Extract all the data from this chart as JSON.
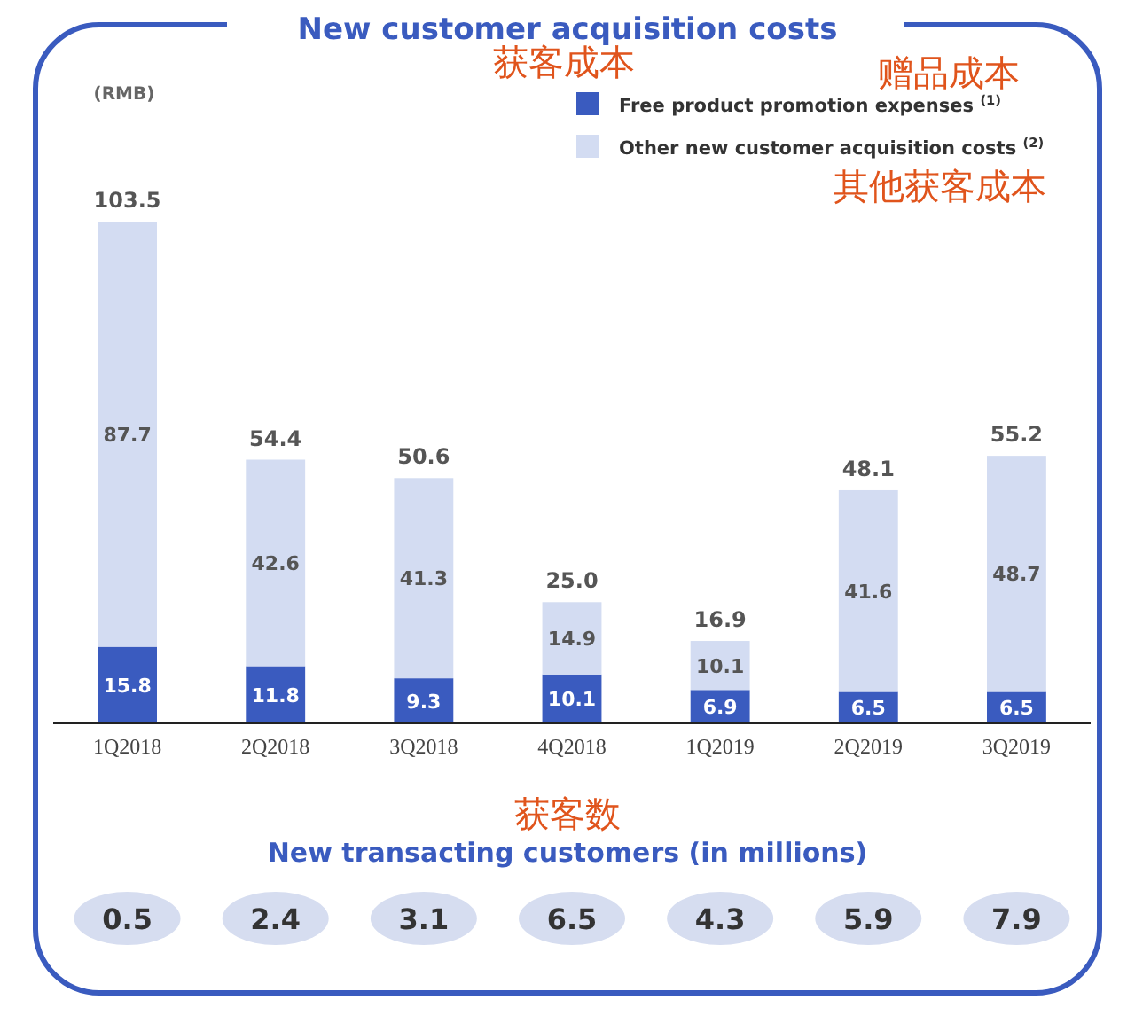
{
  "chart_data": [
    {
      "type": "bar",
      "title": "New customer acquisition costs",
      "stacked": true,
      "data_labels": true,
      "legend": "top right",
      "categories": [
        "1Q2018",
        "2Q2018",
        "3Q2018",
        "4Q2018",
        "1Q2019",
        "2Q2019",
        "3Q2019"
      ],
      "series": [
        {
          "name": "Free product promotion expenses $^{(1)}$",
          "color": "#3a5bbf",
          "values": [
            15.8,
            11.8,
            9.3,
            10.1,
            6.9,
            6.5,
            6.5
          ]
        },
        {
          "name": "Other new customer acquisition costs $^{(2)}$",
          "color": "#d3dcf2",
          "values": [
            87.7,
            42.6,
            41.3,
            14.9,
            10.1,
            41.6,
            48.7
          ]
        }
      ],
      "totals": [
        "103.5",
        "54.4",
        "50.6",
        "25.0",
        "16.9",
        "48.1",
        "55.2"
      ],
      "annotations": [
        "(RMB)",
        "获客成本",
        "赠品成本",
        "其他获客成本"
      ]
    },
    {
      "type": "other",
      "title": "New transacting customers (in millions)",
      "categories": [
        null,
        null,
        null,
        null,
        null,
        null,
        null
      ],
      "values": [
        0.5,
        2.4,
        3.1,
        6.5,
        4.3,
        5.9,
        7.9
      ],
      "data_labels": true,
      "color": "#d6ddf0",
      "annotations": [
        "获客数"
      ]
    }
  ]
}
